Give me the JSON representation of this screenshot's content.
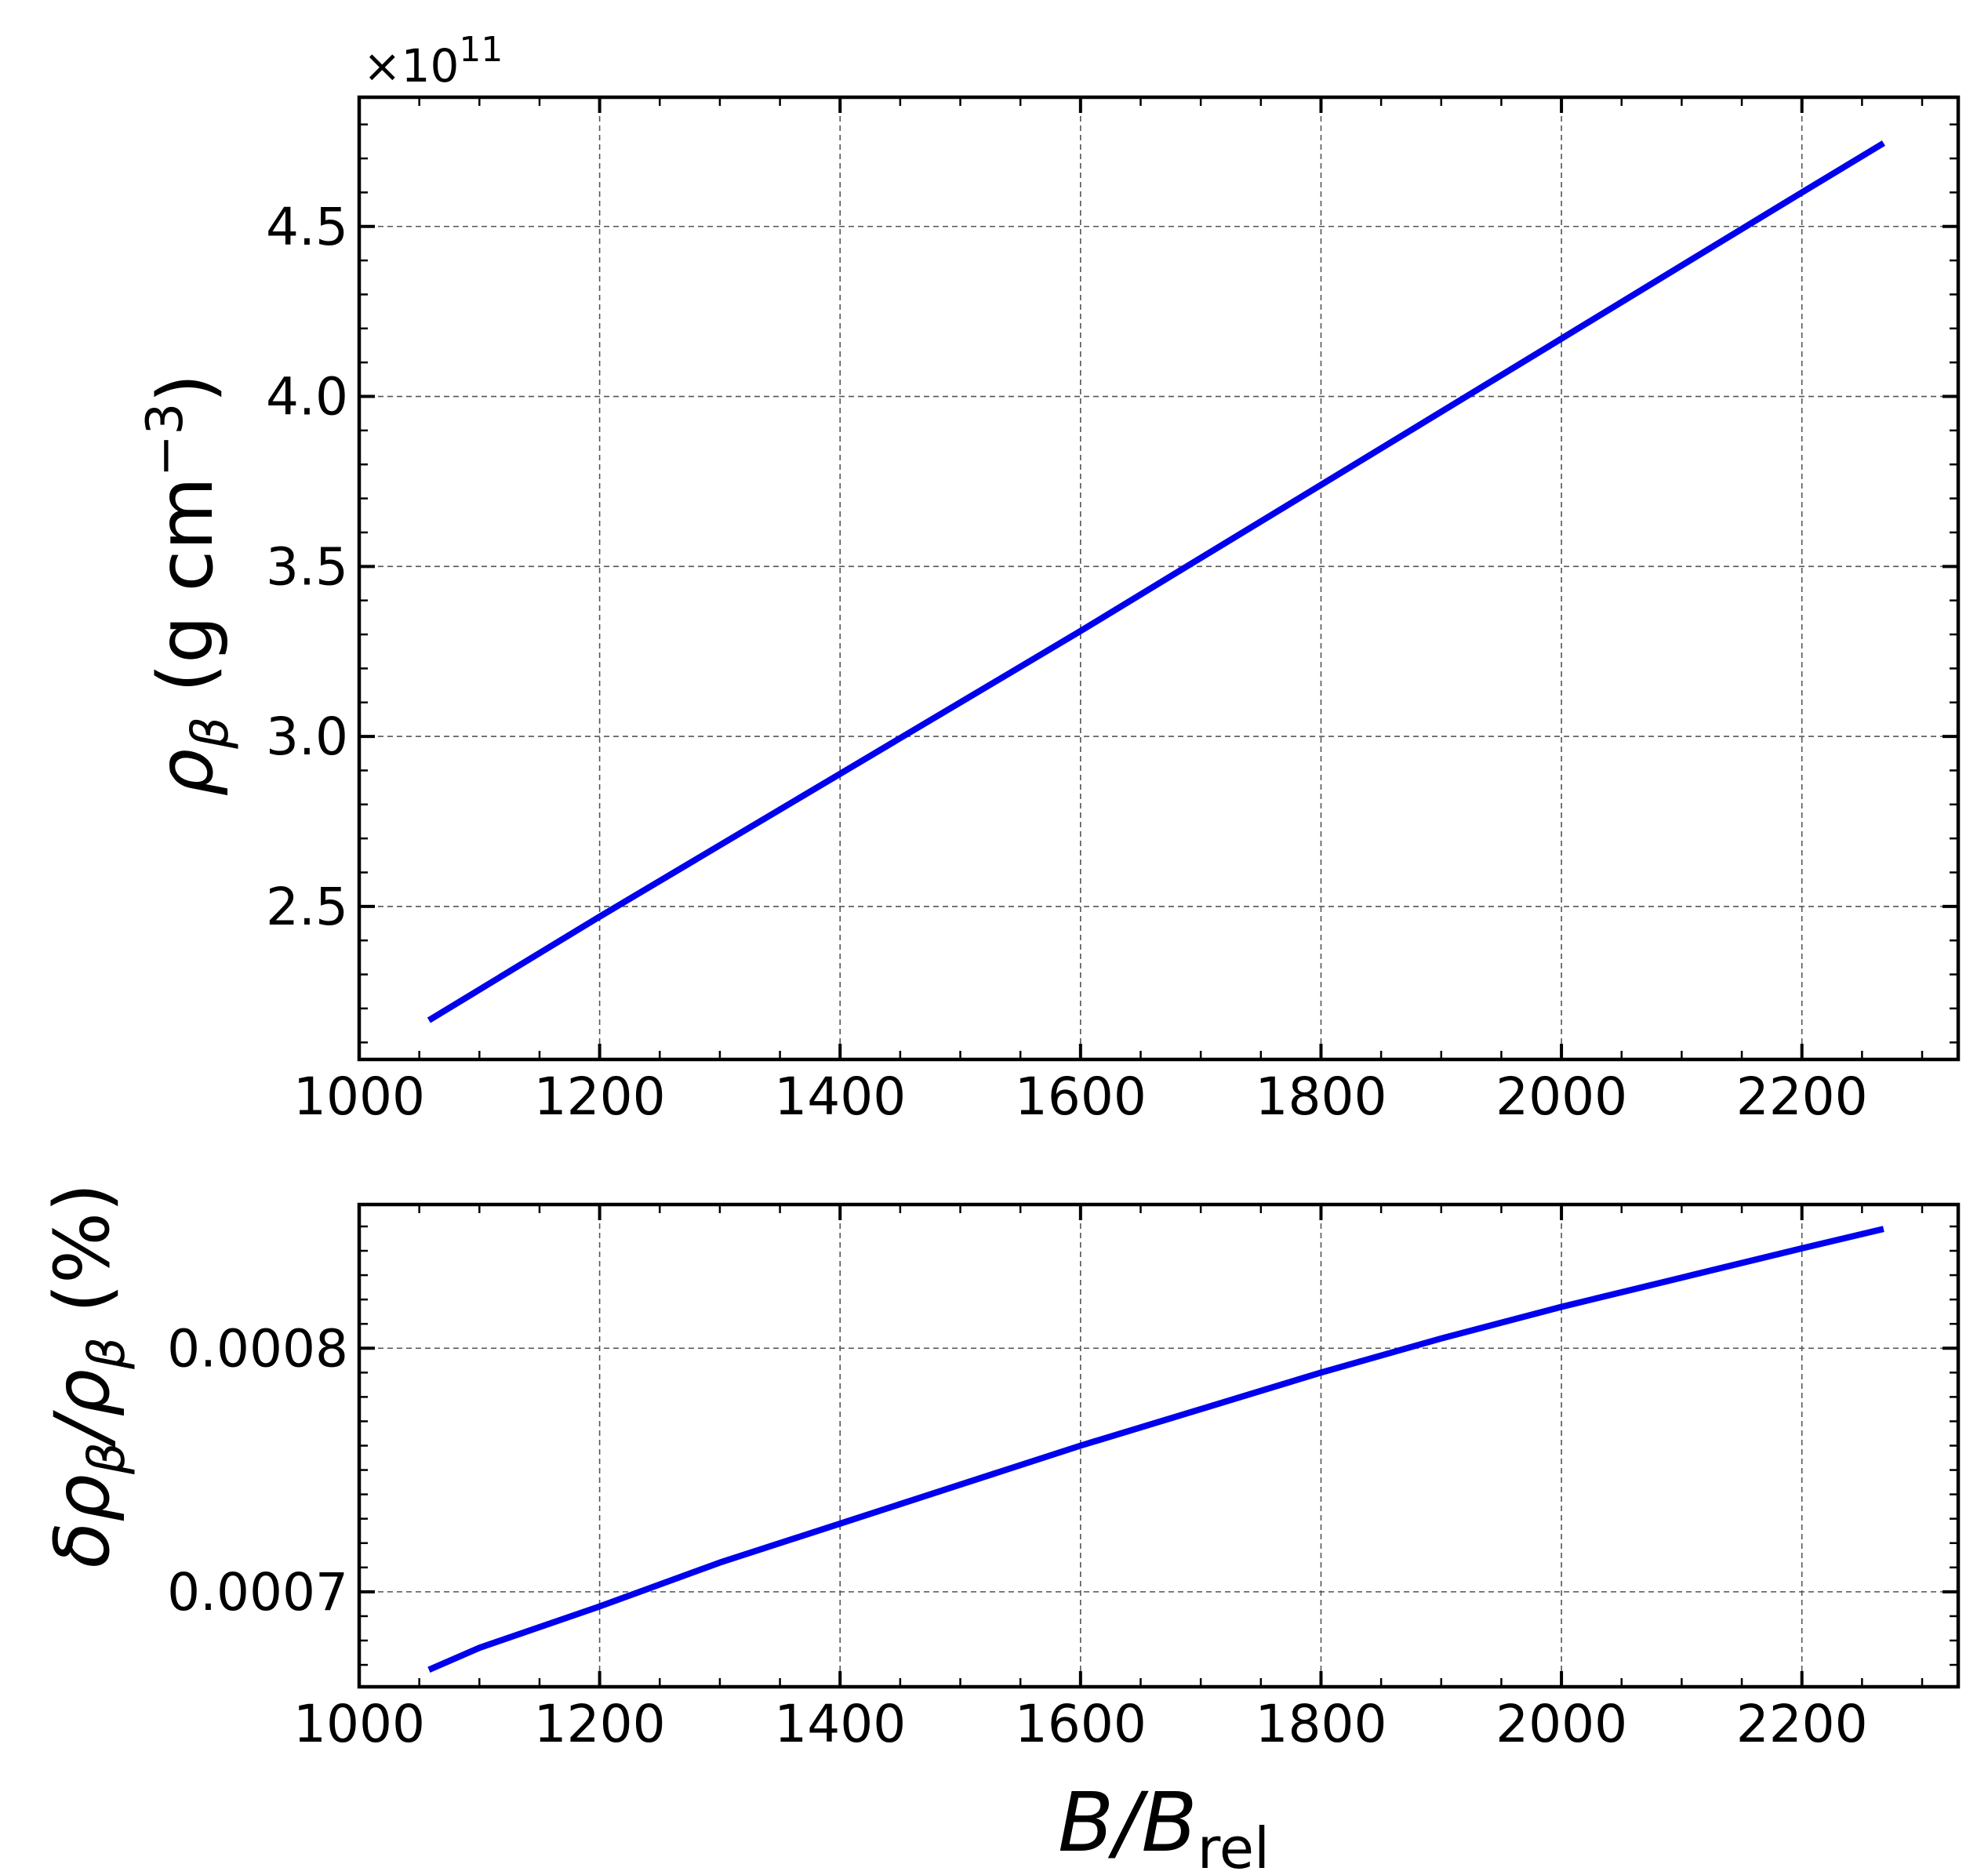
{
  "chart_data": [
    {
      "type": "line",
      "panel": "top",
      "ylabel": "ρβ (g cm−3)",
      "ylabel_parts": {
        "symbol": "ρ",
        "subscript": "β",
        "unit": " (g cm",
        "exponent": "−3",
        "close": ")"
      },
      "xlabel": "",
      "offset_text": {
        "prefix": "×10",
        "exponent": "11"
      },
      "xlim": [
        1000,
        2330
      ],
      "ylim": [
        2.05,
        4.88
      ],
      "xticks": [
        1000,
        1200,
        1400,
        1600,
        1800,
        2000,
        2200
      ],
      "xtick_labels": [
        "1000",
        "1200",
        "1400",
        "1600",
        "1800",
        "2000",
        "2200"
      ],
      "yticks": [
        2.5,
        3.0,
        3.5,
        4.0,
        4.5
      ],
      "ytick_labels": [
        "2.5",
        "3.0",
        "3.5",
        "4.0",
        "4.5"
      ],
      "grid": true,
      "series": [
        {
          "name": "rho_beta",
          "color": "#0000ee",
          "x": [
            1058,
            1200,
            1400,
            1600,
            1800,
            2000,
            2200,
            2268
          ],
          "y": [
            2.165,
            2.47,
            2.89,
            3.31,
            3.74,
            4.17,
            4.6,
            4.745
          ]
        }
      ]
    },
    {
      "type": "line",
      "panel": "bottom",
      "ylabel": "δρβ/ρβ (%)",
      "ylabel_parts": {
        "delta": "δ",
        "rho": "ρ",
        "subscript": "β",
        "slash": "/",
        "unit": " (%)"
      },
      "xlabel": "B/Brel",
      "xlabel_parts": {
        "main": "B/B",
        "subscript": "rel"
      },
      "xlim": [
        1000,
        2330
      ],
      "ylim": [
        0.000661,
        0.000859
      ],
      "xticks": [
        1000,
        1200,
        1400,
        1600,
        1800,
        2000,
        2200
      ],
      "xtick_labels": [
        "1000",
        "1200",
        "1400",
        "1600",
        "1800",
        "2000",
        "2200"
      ],
      "yticks": [
        0.0007,
        0.0008
      ],
      "ytick_labels": [
        "0.0007",
        "0.0008"
      ],
      "grid": true,
      "series": [
        {
          "name": "relative_error",
          "color": "#0000ee",
          "x": [
            1058,
            1100,
            1200,
            1300,
            1400,
            1500,
            1600,
            1700,
            1800,
            1900,
            2000,
            2100,
            2200,
            2268
          ],
          "y": [
            0.000668,
            0.000677,
            0.000694,
            0.000712,
            0.000728,
            0.000744,
            0.00076,
            0.000775,
            0.00079,
            0.000804,
            0.000817,
            0.000829,
            0.000841,
            0.000849
          ]
        }
      ]
    }
  ]
}
